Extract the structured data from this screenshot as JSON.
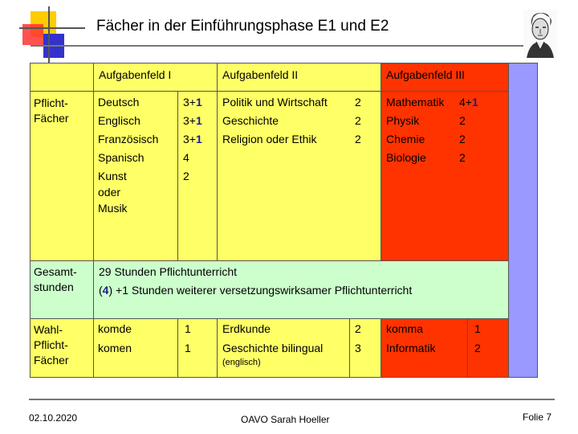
{
  "title": "Fächer in der Einführungsphase E1 und E2",
  "header": {
    "col1": "Aufgabenfeld I",
    "col2": "Aufgabenfeld II",
    "col3": "Aufgabenfeld III"
  },
  "rows": {
    "pflicht": {
      "label_line1": "Pflicht-",
      "label_line2": "Fächer",
      "af1_subjects": [
        "Deutsch",
        "Englisch",
        "Französisch",
        "Spanisch",
        "Kunst",
        "oder",
        "Musik"
      ],
      "af1_hours": [
        {
          "base": "3+",
          "extra": "1"
        },
        {
          "base": "3+",
          "extra": "1"
        },
        {
          "base": "3+",
          "extra": "1"
        },
        {
          "base": "4",
          "extra": ""
        },
        {
          "base": "2",
          "extra": ""
        }
      ],
      "af2_subjects": [
        "Politik und Wirtschaft",
        "Geschichte",
        "Religion oder Ethik"
      ],
      "af2_hours": [
        "2",
        "2",
        "2"
      ],
      "af3_subjects": [
        "Mathematik",
        "Physik",
        "Chemie",
        "Biologie"
      ],
      "af3_hours": [
        {
          "base": "4+",
          "extra": "1"
        },
        {
          "base": "2",
          "extra": ""
        },
        {
          "base": "2",
          "extra": ""
        },
        {
          "base": "2",
          "extra": ""
        }
      ]
    },
    "gesamt": {
      "label_line1": "Gesamt-",
      "label_line2": "stunden",
      "text_line1": "29 Stunden Pflichtunterricht",
      "text_line2_open": "(",
      "text_line2_num": "4",
      "text_line2_rest": ") +1 Stunden weiterer versetzungswirksamer Pflichtunterricht"
    },
    "wahl": {
      "label_line1": "Wahl-",
      "label_line2": "Pflicht-",
      "label_line3": "Fächer",
      "af1_subjects": [
        "komde",
        "komen"
      ],
      "af1_hours": [
        "1",
        "1"
      ],
      "af2_subjects": [
        "Erdkunde",
        "Geschichte bilingual"
      ],
      "af2_note": "(englisch)",
      "af2_hours": [
        "2",
        "3"
      ],
      "af3_subjects": [
        "komma",
        "Informatik"
      ],
      "af3_hours": [
        "1",
        "2"
      ]
    }
  },
  "footer": {
    "date": "02.10.2020",
    "author": "OAVO Sarah Hoeller",
    "slide": "Folie 7"
  },
  "colors": {
    "yellow": "#ffff66",
    "red": "#ff3300",
    "green": "#ccffcc",
    "violet": "#9999ff",
    "deco_yellow": "#ffcc00",
    "deco_red": "#ff3333",
    "deco_blue": "#3333cc"
  }
}
